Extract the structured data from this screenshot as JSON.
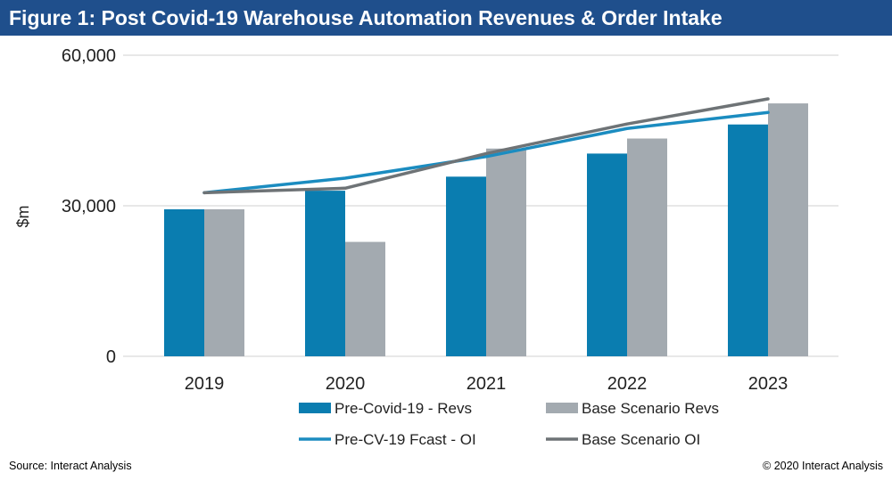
{
  "header": {
    "title": "Figure 1: Post Covid-19 Warehouse Automation Revenues & Order Intake"
  },
  "footer": {
    "source": "Source: Interact Analysis",
    "copyright": "© 2020 Interact Analysis"
  },
  "colors": {
    "title_bar": "#1f4f8c",
    "pre_revs": "#0a7db0",
    "base_revs": "#a3aab0",
    "pre_oi": "#1b8cc0",
    "base_oi": "#6e7376",
    "gridline": "#d0d0d0"
  },
  "chart_data": {
    "type": "bar",
    "title": "",
    "xlabel": "",
    "ylabel": "$m",
    "ylim": [
      0,
      60000
    ],
    "y_ticks": [
      0,
      30000,
      60000
    ],
    "y_tick_labels": [
      "0",
      "30,000",
      "60,000"
    ],
    "grid": true,
    "legend_position": "bottom",
    "categories": [
      "2019",
      "2020",
      "2021",
      "2022",
      "2023"
    ],
    "series": [
      {
        "name": "Pre-Covid-19 - Revs",
        "kind": "bar",
        "color": "#0a7db0",
        "values": [
          29300,
          33000,
          35800,
          40400,
          46200
        ]
      },
      {
        "name": "Base Scenario Revs",
        "kind": "bar",
        "color": "#a3aab0",
        "values": [
          29300,
          22800,
          41400,
          43400,
          50400
        ]
      },
      {
        "name": "Pre-CV-19 Fcast - OI",
        "kind": "line",
        "color": "#1b8cc0",
        "values": [
          32600,
          35500,
          39800,
          45400,
          48600
        ]
      },
      {
        "name": "Base Scenario OI",
        "kind": "line",
        "color": "#6e7376",
        "values": [
          32600,
          33500,
          40400,
          46300,
          51300
        ]
      }
    ]
  }
}
